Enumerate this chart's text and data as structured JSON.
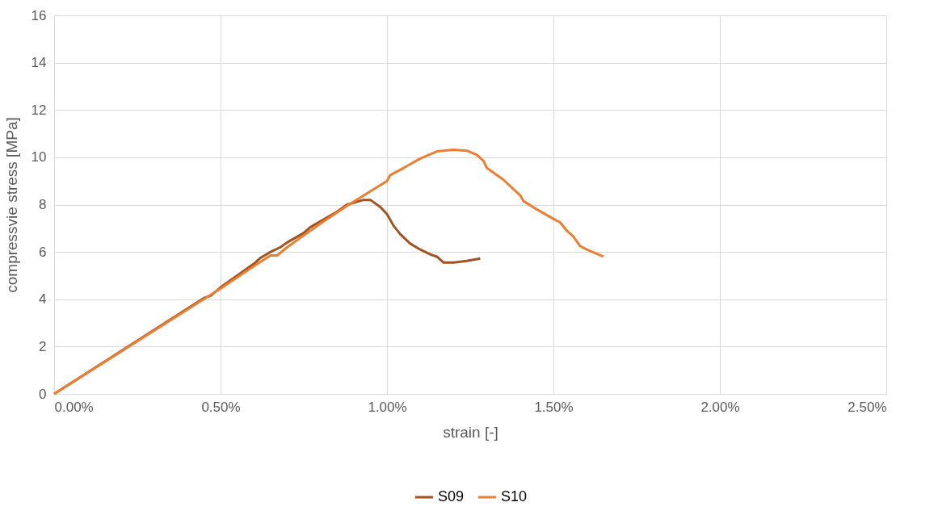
{
  "chart_data": {
    "type": "line",
    "xlabel": "strain [-]",
    "ylabel": "compressvie stress [MPa]",
    "xlim": [
      0,
      0.025
    ],
    "xticks": [
      {
        "value": 0,
        "label": "0.00%"
      },
      {
        "value": 0.005,
        "label": "0.50%"
      },
      {
        "value": 0.01,
        "label": "1.00%"
      },
      {
        "value": 0.015,
        "label": "1.50%"
      },
      {
        "value": 0.02,
        "label": "2.00%"
      },
      {
        "value": 0.025,
        "label": "2.50%"
      }
    ],
    "ylim": [
      0,
      16
    ],
    "yticks": [
      0,
      2,
      4,
      6,
      8,
      10,
      12,
      14,
      16
    ],
    "grid": true,
    "legend": "bottom",
    "marker": "none",
    "line_style": "solid",
    "series": [
      {
        "name": "S09",
        "color": "#a0521f",
        "x": [
          0,
          0.0045,
          0.0047,
          0.005,
          0.006,
          0.0062,
          0.0065,
          0.0068,
          0.007,
          0.0075,
          0.0077,
          0.0085,
          0.0088,
          0.0093,
          0.0095,
          0.0098,
          0.01,
          0.0102,
          0.0104,
          0.0107,
          0.011,
          0.0113,
          0.0115,
          0.0117,
          0.012,
          0.0124,
          0.0128
        ],
        "values": [
          0,
          4.05,
          4.15,
          4.5,
          5.5,
          5.75,
          6.0,
          6.2,
          6.4,
          6.8,
          7.05,
          7.7,
          8.0,
          8.2,
          8.2,
          7.9,
          7.6,
          7.1,
          6.75,
          6.35,
          6.1,
          5.9,
          5.8,
          5.55,
          5.55,
          5.62,
          5.72
        ]
      },
      {
        "name": "S10",
        "color": "#ed7d31",
        "x": [
          0,
          0.005,
          0.006,
          0.0065,
          0.0067,
          0.007,
          0.0075,
          0.008,
          0.0088,
          0.0092,
          0.01,
          0.0101,
          0.0105,
          0.011,
          0.0115,
          0.012,
          0.0124,
          0.0127,
          0.0129,
          0.013,
          0.0135,
          0.0138,
          0.014,
          0.0141,
          0.0145,
          0.015,
          0.0152,
          0.0154,
          0.0156,
          0.0158,
          0.016,
          0.0165
        ],
        "values": [
          0,
          4.45,
          5.4,
          5.85,
          5.85,
          6.2,
          6.7,
          7.2,
          7.95,
          8.3,
          9.0,
          9.25,
          9.55,
          9.95,
          10.25,
          10.32,
          10.28,
          10.1,
          9.85,
          9.55,
          9.05,
          8.65,
          8.4,
          8.15,
          7.8,
          7.4,
          7.25,
          6.9,
          6.65,
          6.25,
          6.1,
          5.8
        ]
      }
    ]
  }
}
